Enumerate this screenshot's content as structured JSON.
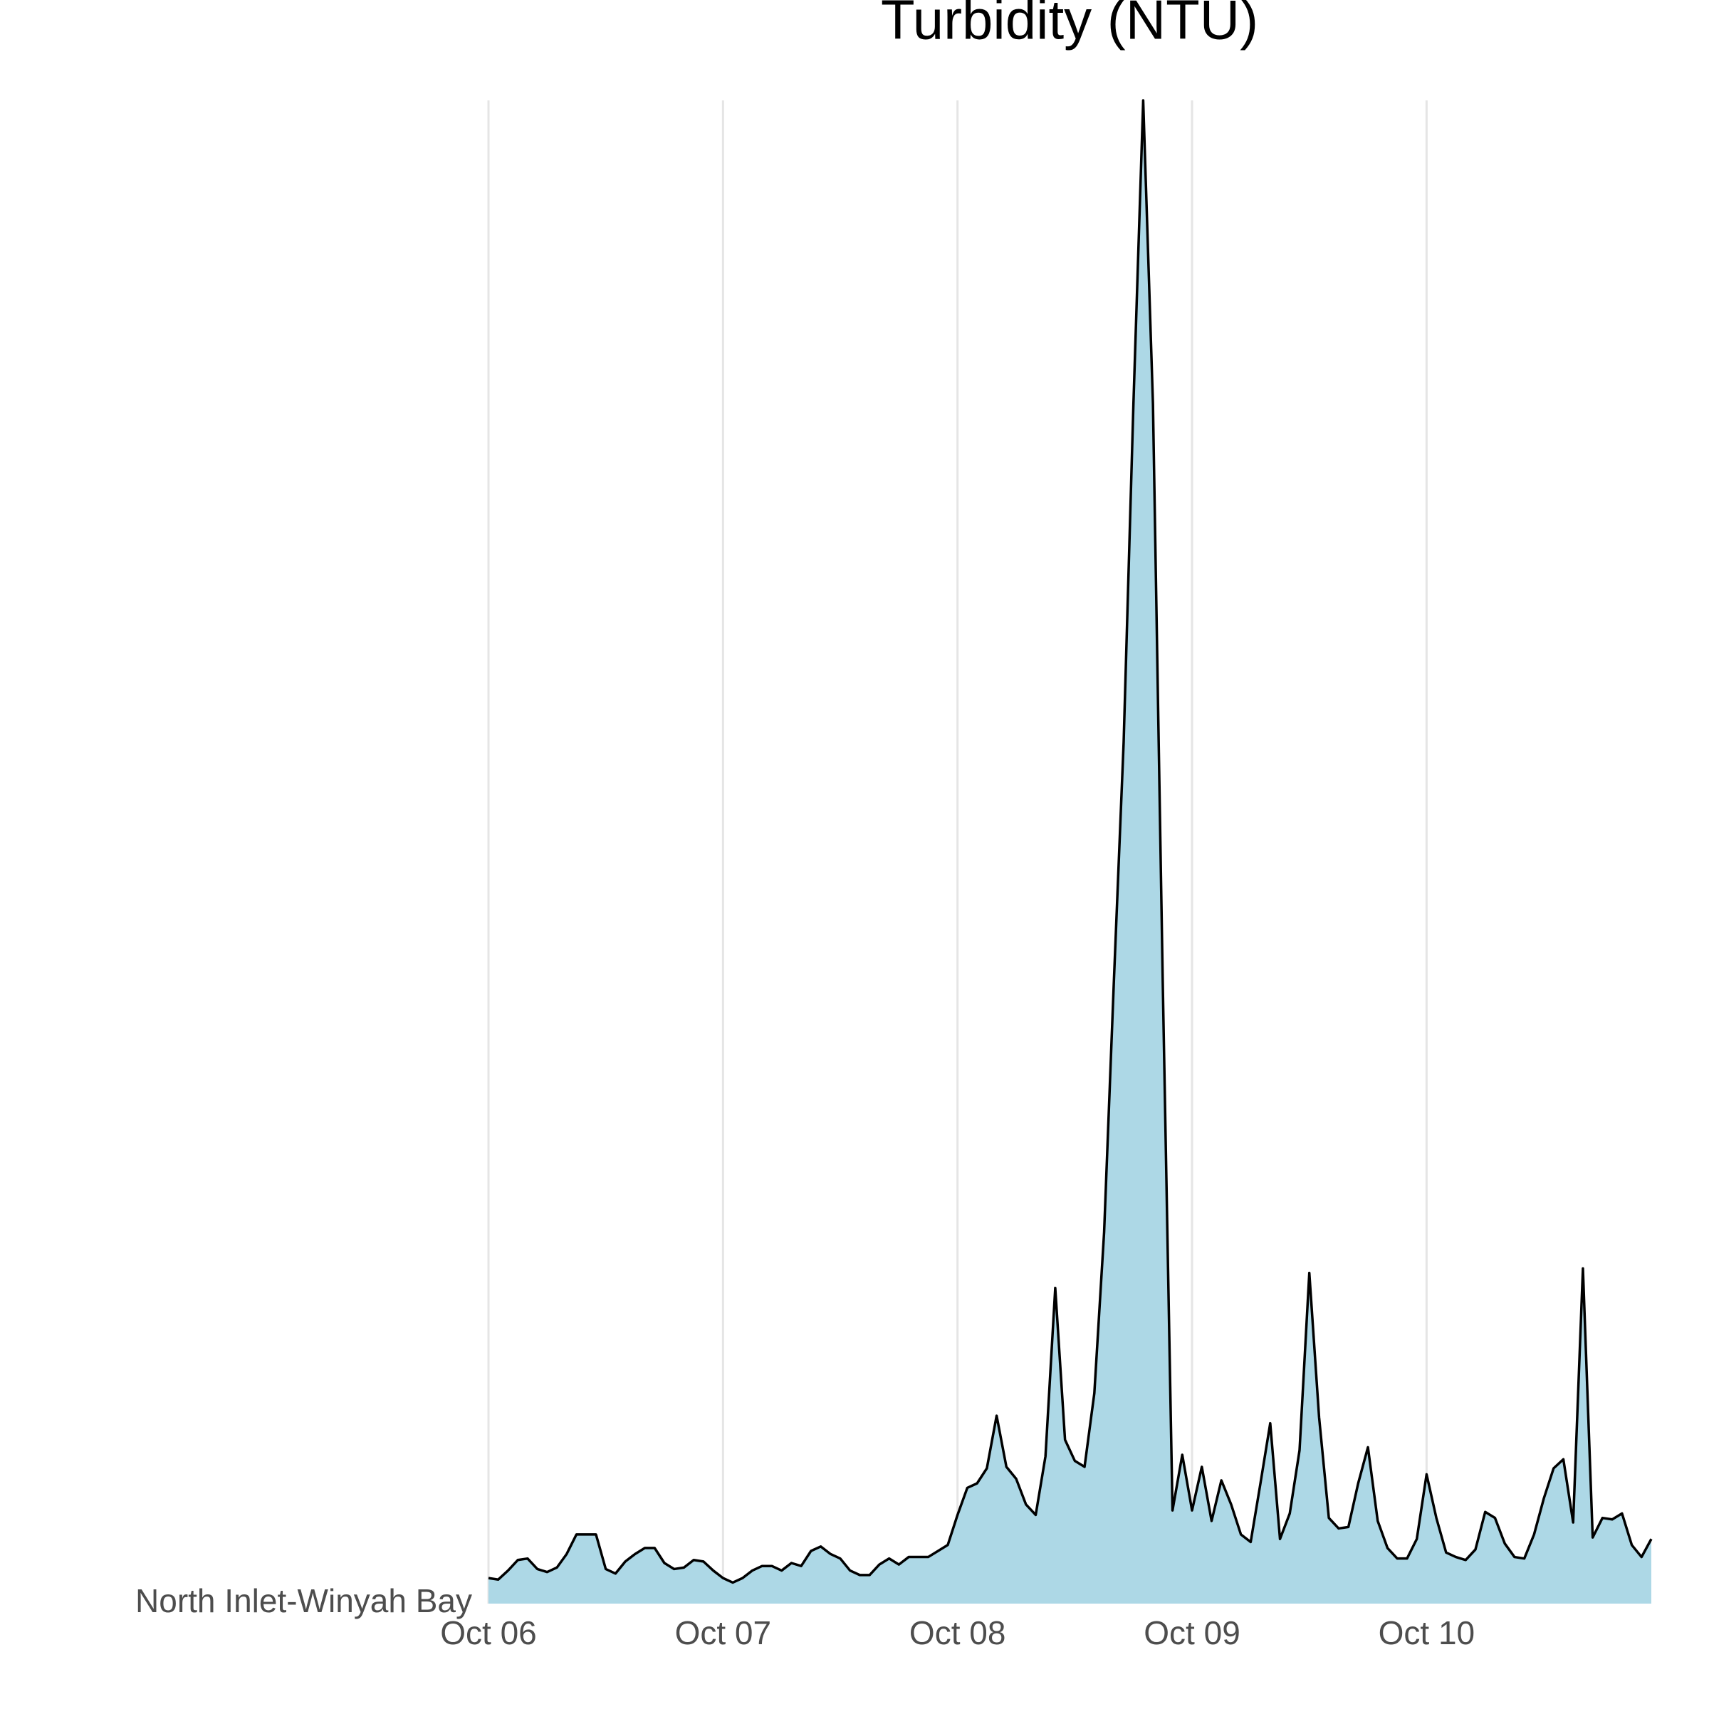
{
  "chart_data": {
    "type": "area",
    "title": "Turbidity (NTU)",
    "series": [
      {
        "name": "North Inlet-Winyah Bay",
        "color": "#add8e6",
        "line_color": "#000000",
        "values": [
          1.7,
          1.6,
          2.2,
          2.9,
          3.0,
          2.3,
          2.1,
          2.4,
          3.3,
          4.6,
          4.6,
          4.6,
          2.3,
          2.0,
          2.8,
          3.3,
          3.7,
          3.7,
          2.7,
          2.3,
          2.4,
          2.9,
          2.8,
          2.2,
          1.7,
          1.4,
          1.7,
          2.2,
          2.5,
          2.5,
          2.2,
          2.7,
          2.5,
          3.5,
          3.8,
          3.3,
          3.0,
          2.2,
          1.9,
          1.9,
          2.6,
          3.0,
          2.6,
          3.1,
          3.1,
          3.1,
          3.5,
          3.9,
          5.9,
          7.7,
          8.0,
          9.0,
          12.5,
          9.1,
          8.3,
          6.6,
          5.9,
          9.8,
          21.0,
          10.9,
          9.5,
          9.1,
          14.0,
          24.7,
          41.4,
          57.3,
          79.8,
          100,
          79.8,
          41.4,
          6.2,
          9.9,
          6.2,
          9.1,
          5.5,
          8.2,
          6.6,
          4.6,
          4.1,
          8.0,
          12.0,
          4.3,
          6.0,
          10.2,
          22.0,
          12.4,
          5.7,
          5.0,
          5.1,
          8.0,
          10.4,
          5.5,
          3.7,
          3.0,
          3.0,
          4.3,
          8.6,
          5.7,
          3.4,
          3.1,
          2.9,
          3.6,
          6.1,
          5.7,
          4.0,
          3.1,
          3.0,
          4.6,
          7.0,
          9.0,
          9.6,
          5.4,
          22.3,
          4.4,
          5.7,
          5.6,
          6.0,
          3.9,
          3.1,
          4.3
        ]
      }
    ],
    "xlim": [
      0,
      119
    ],
    "xticks": [
      {
        "value": 0,
        "label": "Oct 06"
      },
      {
        "value": 24,
        "label": "Oct 07"
      },
      {
        "value": 48,
        "label": "Oct 08"
      },
      {
        "value": 72,
        "label": "Oct 09"
      },
      {
        "value": 96,
        "label": "Oct 10"
      }
    ],
    "ylim": [
      0,
      100
    ],
    "grid": true
  }
}
